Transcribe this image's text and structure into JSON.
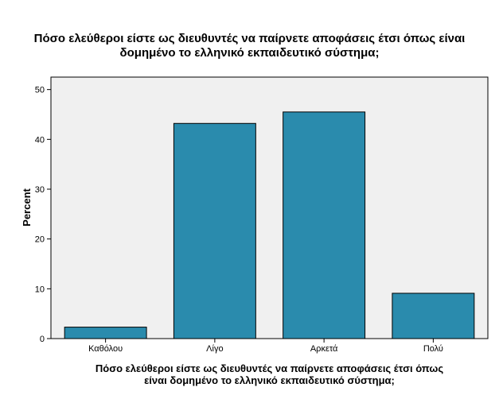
{
  "chart_data": {
    "type": "bar",
    "title": [
      "Πόσο ελεύθεροι είστε ως διευθυντές να παίρνετε αποφάσεις έτσι όπως είναι",
      "δομημένο το ελληνικό εκπαιδευτικό σύστημα;"
    ],
    "xlabel": [
      "Πόσο ελεύθεροι είστε ως διευθυντές να παίρνετε αποφάσεις έτσι όπως",
      "είναι δομημένο το ελληνικό εκπαιδευτικό σύστημα;"
    ],
    "ylabel": "Percent",
    "categories": [
      "Καθόλου",
      "Λίγο",
      "Αρκετά",
      "Πολύ"
    ],
    "values": [
      2.3,
      43.2,
      45.5,
      9.1
    ],
    "ylim": [
      0,
      52.5
    ],
    "yticks": [
      0,
      10,
      20,
      30,
      40,
      50
    ],
    "grid": false,
    "colors": {
      "bar": "#2a8bad",
      "bar_edge": "#000000",
      "plot_bg": "#f0f0f0",
      "frame": "#000000"
    }
  }
}
